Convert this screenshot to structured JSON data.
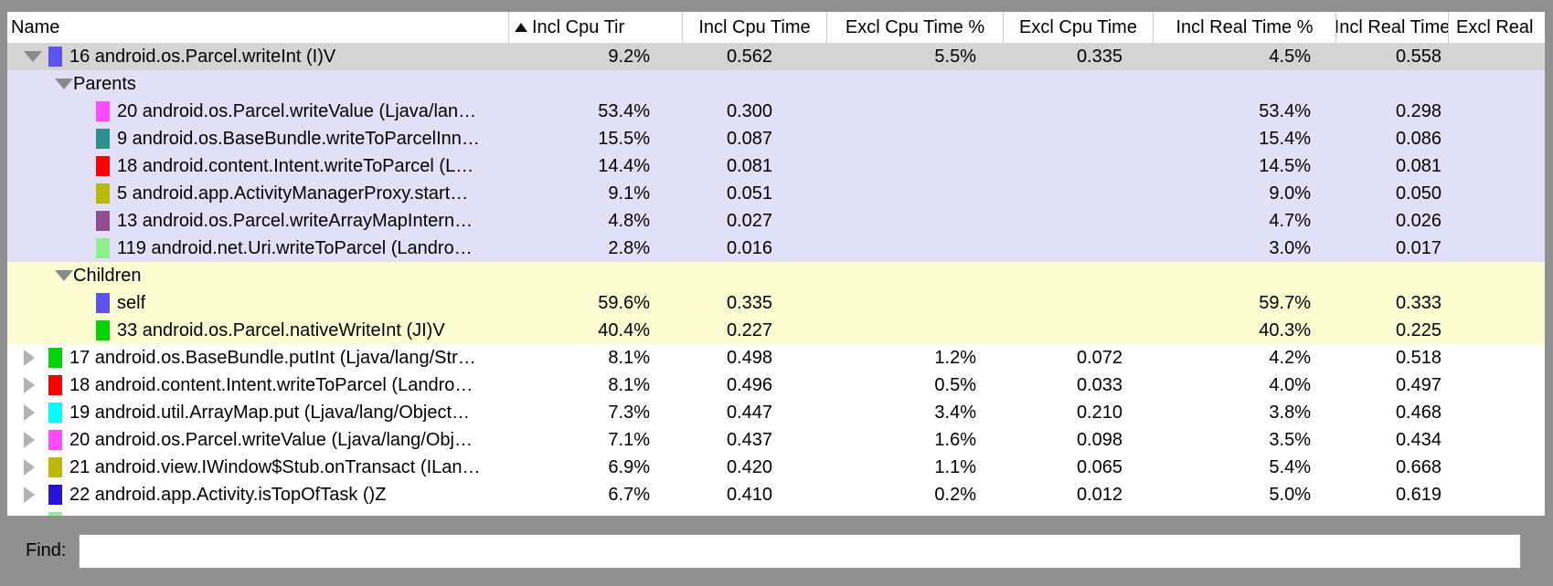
{
  "window": {
    "frame_color": "#909090"
  },
  "table": {
    "sort_icon": "ascending-triangle",
    "columns": [
      {
        "id": "name-column",
        "label": "Name"
      },
      {
        "id": "incl-cpu-time-pct",
        "label": "Incl Cpu Tir",
        "sorted": true
      },
      {
        "id": "incl-cpu-time",
        "label": "Incl Cpu Time"
      },
      {
        "id": "excl-cpu-time-pct",
        "label": "Excl Cpu Time %"
      },
      {
        "id": "excl-cpu-time",
        "label": "Excl Cpu Time"
      },
      {
        "id": "incl-real-time-pct",
        "label": "Incl Real Time %"
      },
      {
        "id": "incl-real-time",
        "label": "Incl Real Time"
      },
      {
        "id": "excl-real-time",
        "label": "Excl Real"
      }
    ],
    "palette": {
      "selected": "#d4d4d4",
      "parents": "#e1e0f7",
      "children": "#fcfcd2",
      "row": "#ffffff"
    },
    "rows": [
      {
        "kind": "method",
        "indent": 0,
        "disclosure": "expanded",
        "bg": "selected",
        "swatch": "#5b55ee",
        "name": "16 android.os.Parcel.writeInt (I)V",
        "values": [
          "9.2%",
          "0.562",
          "5.5%",
          "0.335",
          "4.5%",
          "0.558",
          ""
        ]
      },
      {
        "kind": "section",
        "indent": 0,
        "disclosure": "expanded",
        "bg": "parents",
        "swatch": "",
        "name": "Parents",
        "values": [
          "",
          "",
          "",
          "",
          "",
          "",
          ""
        ]
      },
      {
        "kind": "method",
        "indent": 1,
        "disclosure": "none",
        "bg": "parents",
        "swatch": "#ff4bff",
        "name": "20 android.os.Parcel.writeValue (Ljava/lan…",
        "values": [
          "53.4%",
          "0.300",
          "",
          "",
          "53.4%",
          "0.298",
          ""
        ]
      },
      {
        "kind": "method",
        "indent": 1,
        "disclosure": "none",
        "bg": "parents",
        "swatch": "#2e8f8f",
        "name": "9 android.os.BaseBundle.writeToParcelInn…",
        "values": [
          "15.5%",
          "0.087",
          "",
          "",
          "15.4%",
          "0.086",
          ""
        ]
      },
      {
        "kind": "method",
        "indent": 1,
        "disclosure": "none",
        "bg": "parents",
        "swatch": "#ff0000",
        "name": "18 android.content.Intent.writeToParcel (L…",
        "values": [
          "14.4%",
          "0.081",
          "",
          "",
          "14.5%",
          "0.081",
          ""
        ]
      },
      {
        "kind": "method",
        "indent": 1,
        "disclosure": "none",
        "bg": "parents",
        "swatch": "#b9ba08",
        "name": "5 android.app.ActivityManagerProxy.start…",
        "values": [
          "9.1%",
          "0.051",
          "",
          "",
          "9.0%",
          "0.050",
          ""
        ]
      },
      {
        "kind": "method",
        "indent": 1,
        "disclosure": "none",
        "bg": "parents",
        "swatch": "#8e4e90",
        "name": "13 android.os.Parcel.writeArrayMapIntern…",
        "values": [
          "4.8%",
          "0.027",
          "",
          "",
          "4.7%",
          "0.026",
          ""
        ]
      },
      {
        "kind": "method",
        "indent": 1,
        "disclosure": "none",
        "bg": "parents",
        "swatch": "#90ee90",
        "name": "119 android.net.Uri.writeToParcel (Landro…",
        "values": [
          "2.8%",
          "0.016",
          "",
          "",
          "3.0%",
          "0.017",
          ""
        ]
      },
      {
        "kind": "section",
        "indent": 0,
        "disclosure": "expanded",
        "bg": "children",
        "swatch": "",
        "name": "Children",
        "values": [
          "",
          "",
          "",
          "",
          "",
          "",
          ""
        ]
      },
      {
        "kind": "method",
        "indent": 1,
        "disclosure": "none",
        "bg": "children",
        "swatch": "#5b55ee",
        "name": "self",
        "values": [
          "59.6%",
          "0.335",
          "",
          "",
          "59.7%",
          "0.333",
          ""
        ]
      },
      {
        "kind": "method",
        "indent": 1,
        "disclosure": "none",
        "bg": "children",
        "swatch": "#05d305",
        "name": "33 android.os.Parcel.nativeWriteInt (JI)V",
        "values": [
          "40.4%",
          "0.227",
          "",
          "",
          "40.3%",
          "0.225",
          ""
        ]
      },
      {
        "kind": "method",
        "indent": 0,
        "disclosure": "collapsed",
        "bg": "row",
        "swatch": "#05d305",
        "name": "17 android.os.BaseBundle.putInt (Ljava/lang/Str…",
        "values": [
          "8.1%",
          "0.498",
          "1.2%",
          "0.072",
          "4.2%",
          "0.518",
          ""
        ]
      },
      {
        "kind": "method",
        "indent": 0,
        "disclosure": "collapsed",
        "bg": "row",
        "swatch": "#ff0000",
        "name": "18 android.content.Intent.writeToParcel (Landro…",
        "values": [
          "8.1%",
          "0.496",
          "0.5%",
          "0.033",
          "4.0%",
          "0.497",
          ""
        ]
      },
      {
        "kind": "method",
        "indent": 0,
        "disclosure": "collapsed",
        "bg": "row",
        "swatch": "#00feff",
        "name": "19 android.util.ArrayMap.put (Ljava/lang/Object…",
        "values": [
          "7.3%",
          "0.447",
          "3.4%",
          "0.210",
          "3.8%",
          "0.468",
          ""
        ]
      },
      {
        "kind": "method",
        "indent": 0,
        "disclosure": "collapsed",
        "bg": "row",
        "swatch": "#ff4bff",
        "name": "20 android.os.Parcel.writeValue (Ljava/lang/Obj…",
        "values": [
          "7.1%",
          "0.437",
          "1.6%",
          "0.098",
          "3.5%",
          "0.434",
          ""
        ]
      },
      {
        "kind": "method",
        "indent": 0,
        "disclosure": "collapsed",
        "bg": "row",
        "swatch": "#b9ba08",
        "name": "21 android.view.IWindow$Stub.onTransact (ILan…",
        "values": [
          "6.9%",
          "0.420",
          "1.1%",
          "0.065",
          "5.4%",
          "0.668",
          ""
        ]
      },
      {
        "kind": "method",
        "indent": 0,
        "disclosure": "collapsed",
        "bg": "row",
        "swatch": "#2613d5",
        "name": "22 android.app.Activity.isTopOfTask ()Z",
        "values": [
          "6.7%",
          "0.410",
          "0.2%",
          "0.012",
          "5.0%",
          "0.619",
          ""
        ]
      },
      {
        "kind": "partial",
        "indent": 0,
        "disclosure": "none",
        "bg": "row",
        "swatch": "#90ee90",
        "name": "",
        "values": [
          "",
          "",
          "",
          "",
          "",
          "",
          ""
        ]
      }
    ]
  },
  "find_bar": {
    "label": "Find:",
    "value": ""
  }
}
